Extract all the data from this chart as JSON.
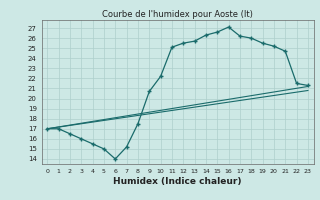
{
  "title": "Courbe de l'humidex pour Aoste (It)",
  "xlabel": "Humidex (Indice chaleur)",
  "xlim": [
    -0.5,
    23.5
  ],
  "ylim": [
    13.5,
    27.8
  ],
  "xticks": [
    0,
    1,
    2,
    3,
    4,
    5,
    6,
    7,
    8,
    9,
    10,
    11,
    12,
    13,
    14,
    15,
    16,
    17,
    18,
    19,
    20,
    21,
    22,
    23
  ],
  "yticks": [
    14,
    15,
    16,
    17,
    18,
    19,
    20,
    21,
    22,
    23,
    24,
    25,
    26,
    27
  ],
  "bg_color": "#cde8e5",
  "line_color": "#1a6b6b",
  "grid_color": "#aecfcc",
  "curve_x": [
    0,
    1,
    2,
    3,
    4,
    5,
    6,
    7,
    8,
    9,
    10,
    11,
    12,
    13,
    14,
    15,
    16,
    17,
    18,
    19,
    20,
    21,
    22,
    23
  ],
  "curve_y": [
    17.0,
    17.0,
    16.5,
    16.0,
    15.5,
    15.0,
    14.0,
    15.2,
    17.5,
    20.7,
    22.2,
    25.1,
    25.5,
    25.7,
    26.3,
    26.6,
    27.1,
    26.2,
    26.0,
    25.5,
    25.2,
    24.7,
    21.5,
    21.3
  ],
  "line1_x": [
    0,
    23
  ],
  "line1_y": [
    17.0,
    21.2
  ],
  "line2_x": [
    0,
    23
  ],
  "line2_y": [
    17.0,
    20.8
  ]
}
